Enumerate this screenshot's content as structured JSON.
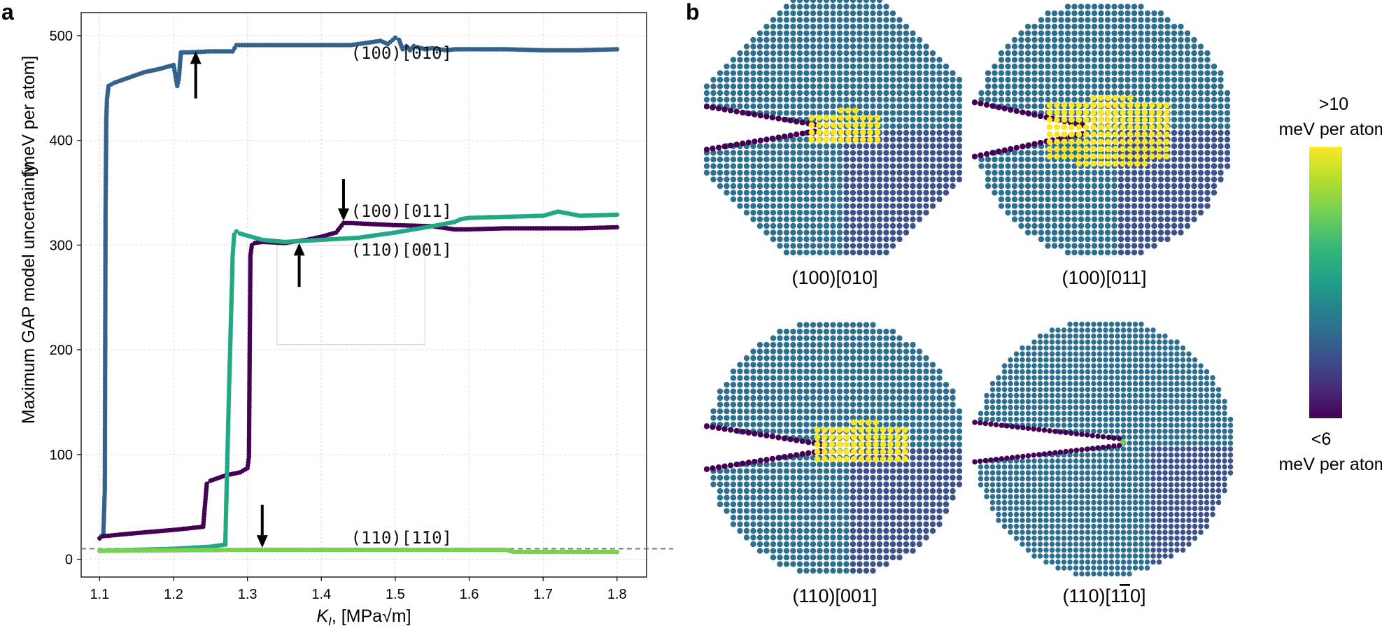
{
  "panel_a": {
    "letter": "a",
    "chart_data": {
      "type": "line",
      "title": "",
      "xlabel_main": "K",
      "xlabel_sub": "I",
      "xlabel_tail": ", [MPa√m]",
      "ylabel_1": "Maximum GAP model uncertainty",
      "ylabel_2": "[meV per atom]",
      "xlim": [
        1.075,
        1.84
      ],
      "ylim": [
        -17,
        522
      ],
      "xticks": [
        "1.1",
        "1.2",
        "1.3",
        "1.4",
        "1.5",
        "1.6",
        "1.7",
        "1.8"
      ],
      "yticks": [
        "0",
        "100",
        "200",
        "300",
        "400",
        "500"
      ],
      "grid": true,
      "threshold": 10,
      "series": [
        {
          "name": "(100)[010]",
          "color": "#33638d",
          "x": [
            1.1,
            1.105,
            1.107,
            1.108,
            1.109,
            1.11,
            1.112,
            1.12,
            1.14,
            1.16,
            1.18,
            1.2,
            1.205,
            1.207,
            1.21,
            1.213,
            1.22,
            1.25,
            1.28,
            1.285,
            1.3,
            1.35,
            1.4,
            1.44,
            1.46,
            1.48,
            1.49,
            1.5,
            1.505,
            1.51,
            1.515,
            1.52,
            1.525,
            1.53,
            1.54,
            1.55,
            1.56,
            1.57,
            1.58,
            1.6,
            1.65,
            1.7,
            1.75,
            1.8
          ],
          "y": [
            20,
            24,
            67,
            332,
            420,
            440,
            452,
            455,
            460,
            465,
            468,
            472,
            452,
            458,
            484,
            484,
            484,
            485,
            485,
            491,
            491,
            491,
            491,
            491,
            493,
            495,
            492,
            498,
            496,
            487,
            490,
            486,
            490,
            489,
            487,
            488,
            487,
            486,
            487,
            487,
            487,
            486,
            486,
            487
          ]
        },
        {
          "name": "(100)[011]",
          "color": "#440154",
          "x": [
            1.1,
            1.105,
            1.12,
            1.15,
            1.2,
            1.24,
            1.245,
            1.25,
            1.27,
            1.29,
            1.3,
            1.302,
            1.304,
            1.306,
            1.31,
            1.32,
            1.35,
            1.38,
            1.4,
            1.42,
            1.43,
            1.44,
            1.5,
            1.55,
            1.58,
            1.6,
            1.65,
            1.7,
            1.75,
            1.8
          ],
          "y": [
            20,
            22,
            23,
            25,
            28,
            31,
            72,
            75,
            80,
            83,
            87,
            98,
            290,
            300,
            302,
            303,
            302,
            305,
            308,
            312,
            321,
            321,
            319,
            318,
            315,
            315,
            316,
            316,
            316,
            317
          ]
        },
        {
          "name": "(110)[001]",
          "color": "#22a884",
          "x": [
            1.1,
            1.15,
            1.2,
            1.25,
            1.27,
            1.275,
            1.28,
            1.282,
            1.285,
            1.29,
            1.3,
            1.32,
            1.35,
            1.4,
            1.45,
            1.5,
            1.55,
            1.58,
            1.59,
            1.6,
            1.65,
            1.7,
            1.72,
            1.75,
            1.8
          ],
          "y": [
            8,
            9,
            10,
            12,
            14,
            160,
            290,
            310,
            313,
            311,
            309,
            305,
            303,
            305,
            307,
            312,
            318,
            322,
            325,
            326,
            327,
            328,
            332,
            328,
            329
          ]
        },
        {
          "name": "(110)[1-10]",
          "color": "#7ad151",
          "x": [
            1.1,
            1.3,
            1.5,
            1.65,
            1.66,
            1.8
          ],
          "y": [
            8,
            9,
            9,
            9,
            7,
            7
          ]
        }
      ],
      "annotations": [
        {
          "text": "(100)[010]",
          "x": 1.44,
          "y": 478
        },
        {
          "text": "(100)[011]",
          "x": 1.44,
          "y": 327
        },
        {
          "text": "(110)[001]",
          "x": 1.44,
          "y": 290
        },
        {
          "text": "(110)[1̄10]",
          "x": 1.44,
          "y": 15
        }
      ],
      "arrows": [
        {
          "x": 1.23,
          "y_tail": 440,
          "y_head": 485,
          "dir": "up"
        },
        {
          "x": 1.43,
          "y_tail": 363,
          "y_head": 323,
          "dir": "down"
        },
        {
          "x": 1.37,
          "y_tail": 260,
          "y_head": 302,
          "dir": "up"
        },
        {
          "x": 1.32,
          "y_tail": 52,
          "y_head": 11,
          "dir": "down"
        }
      ],
      "inset_box": {
        "x0": 1.34,
        "x1": 1.54,
        "y0": 205,
        "y1": 300
      }
    }
  },
  "panel_b": {
    "letter": "b",
    "snapshots": [
      {
        "caption": "(100)[010]"
      },
      {
        "caption": "(100)[011]"
      },
      {
        "caption": "(110)[001]"
      },
      {
        "caption_prefix": "(110)[1",
        "caption_bar": "1",
        "caption_suffix": "0]"
      }
    ],
    "colorbar": {
      "top_value": ">10",
      "top_unit": "meV per atom",
      "bottom_value": "<6",
      "bottom_unit": "meV per atom",
      "colors": [
        "#fde725",
        "#b5de2b",
        "#6ece58",
        "#35b779",
        "#1f9e89",
        "#26828e",
        "#31688e",
        "#3e4989",
        "#482878",
        "#440154"
      ],
      "atom_color": "#2d6f8e",
      "atom_color_dark": "#3b528b",
      "crack_color": "#440154",
      "hot_color": "#fde725"
    }
  }
}
